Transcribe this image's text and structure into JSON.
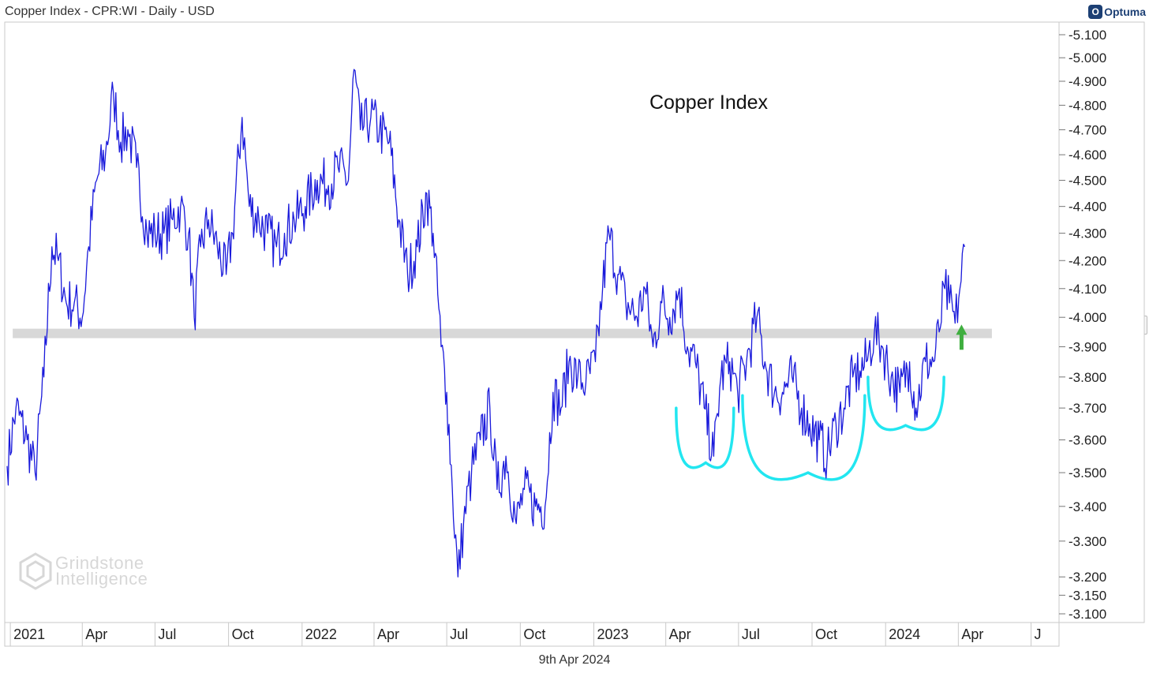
{
  "header": {
    "title": "Copper Index - CPR:WI - Daily - USD"
  },
  "brand": {
    "logo_text": "Optuma",
    "logo_icon": "optuma-logo-icon"
  },
  "footer": {
    "date": "9th Apr 2024"
  },
  "watermark": {
    "line1": "Grindstone",
    "line2": "Intelligence"
  },
  "colors": {
    "series": "#1a1adb",
    "support": "#d8d8d8",
    "pattern": "#22e6f0",
    "arrow": "#3fae3f"
  },
  "chart_data": {
    "type": "line",
    "title": "Copper Index",
    "scale": "log",
    "grid": false,
    "ylim": [
      3.1,
      5.1
    ],
    "y_ticks": [
      "5.100",
      "5.000",
      "4.900",
      "4.800",
      "4.700",
      "4.600",
      "4.500",
      "4.400",
      "4.300",
      "4.200",
      "4.100",
      "4.000",
      "3.900",
      "3.800",
      "3.700",
      "3.600",
      "3.500",
      "3.400",
      "3.300",
      "3.200",
      "3.150",
      "3.100"
    ],
    "x_ticks": [
      "2021",
      "Apr",
      "Jul",
      "Oct",
      "2022",
      "Apr",
      "Jul",
      "Oct",
      "2023",
      "Apr",
      "Jul",
      "Oct",
      "2024",
      "Apr",
      "J"
    ],
    "x_tick_dates": [
      "2021-01-01",
      "2021-04-01",
      "2021-07-01",
      "2021-10-01",
      "2022-01-01",
      "2022-04-01",
      "2022-07-01",
      "2022-10-01",
      "2023-01-01",
      "2023-04-01",
      "2023-07-01",
      "2023-10-01",
      "2024-01-01",
      "2024-04-01",
      "2024-07-01"
    ],
    "xlim": [
      "2020-12-25",
      "2024-08-05"
    ],
    "series": [
      {
        "points": [
          [
            "2020-12-28",
            3.52
          ],
          [
            "2021-01-08",
            3.7
          ],
          [
            "2021-01-22",
            3.6
          ],
          [
            "2021-02-01",
            3.5
          ],
          [
            "2021-02-12",
            3.8
          ],
          [
            "2021-02-22",
            4.25
          ],
          [
            "2021-03-02",
            4.2
          ],
          [
            "2021-03-12",
            4.05
          ],
          [
            "2021-03-22",
            4.05
          ],
          [
            "2021-04-01",
            4.0
          ],
          [
            "2021-04-09",
            4.25
          ],
          [
            "2021-04-19",
            4.5
          ],
          [
            "2021-04-30",
            4.6
          ],
          [
            "2021-05-10",
            4.85
          ],
          [
            "2021-05-19",
            4.65
          ],
          [
            "2021-05-28",
            4.7
          ],
          [
            "2021-06-08",
            4.55
          ],
          [
            "2021-06-21",
            4.3
          ],
          [
            "2021-07-01",
            4.3
          ],
          [
            "2021-07-12",
            4.3
          ],
          [
            "2021-07-23",
            4.35
          ],
          [
            "2021-08-02",
            4.4
          ],
          [
            "2021-08-12",
            4.3
          ],
          [
            "2021-08-19",
            4.0
          ],
          [
            "2021-08-27",
            4.25
          ],
          [
            "2021-09-06",
            4.35
          ],
          [
            "2021-09-17",
            4.25
          ],
          [
            "2021-09-28",
            4.15
          ],
          [
            "2021-10-06",
            4.3
          ],
          [
            "2021-10-18",
            4.75
          ],
          [
            "2021-10-27",
            4.4
          ],
          [
            "2021-11-08",
            4.35
          ],
          [
            "2021-11-19",
            4.3
          ],
          [
            "2021-11-30",
            4.25
          ],
          [
            "2021-12-10",
            4.3
          ],
          [
            "2021-12-22",
            4.35
          ],
          [
            "2022-01-05",
            4.4
          ],
          [
            "2022-01-20",
            4.5
          ],
          [
            "2022-02-03",
            4.48
          ],
          [
            "2022-02-15",
            4.55
          ],
          [
            "2022-02-28",
            4.5
          ],
          [
            "2022-03-07",
            4.95
          ],
          [
            "2022-03-15",
            4.7
          ],
          [
            "2022-03-28",
            4.75
          ],
          [
            "2022-04-08",
            4.7
          ],
          [
            "2022-04-20",
            4.65
          ],
          [
            "2022-05-02",
            4.35
          ],
          [
            "2022-05-13",
            4.15
          ],
          [
            "2022-05-25",
            4.25
          ],
          [
            "2022-06-06",
            4.45
          ],
          [
            "2022-06-14",
            4.3
          ],
          [
            "2022-06-24",
            3.9
          ],
          [
            "2022-07-01",
            3.75
          ],
          [
            "2022-07-08",
            3.45
          ],
          [
            "2022-07-15",
            3.2
          ],
          [
            "2022-07-22",
            3.35
          ],
          [
            "2022-08-01",
            3.5
          ],
          [
            "2022-08-12",
            3.6
          ],
          [
            "2022-08-24",
            3.7
          ],
          [
            "2022-09-02",
            3.45
          ],
          [
            "2022-09-13",
            3.55
          ],
          [
            "2022-09-26",
            3.35
          ],
          [
            "2022-10-06",
            3.45
          ],
          [
            "2022-10-20",
            3.4
          ],
          [
            "2022-11-01",
            3.4
          ],
          [
            "2022-11-11",
            3.75
          ],
          [
            "2022-11-21",
            3.7
          ],
          [
            "2022-12-01",
            3.85
          ],
          [
            "2022-12-12",
            3.8
          ],
          [
            "2022-12-22",
            3.78
          ],
          [
            "2023-01-03",
            3.85
          ],
          [
            "2023-01-12",
            4.1
          ],
          [
            "2023-01-20",
            4.3
          ],
          [
            "2023-01-31",
            4.15
          ],
          [
            "2023-02-10",
            4.05
          ],
          [
            "2023-02-24",
            4.0
          ],
          [
            "2023-03-06",
            4.1
          ],
          [
            "2023-03-16",
            3.9
          ],
          [
            "2023-03-27",
            4.05
          ],
          [
            "2023-04-06",
            4.0
          ],
          [
            "2023-04-18",
            4.1
          ],
          [
            "2023-04-28",
            3.9
          ],
          [
            "2023-05-08",
            3.85
          ],
          [
            "2023-05-19",
            3.7
          ],
          [
            "2023-05-31",
            3.55
          ],
          [
            "2023-06-09",
            3.8
          ],
          [
            "2023-06-20",
            3.85
          ],
          [
            "2023-06-30",
            3.75
          ],
          [
            "2023-07-11",
            3.85
          ],
          [
            "2023-07-24",
            4.0
          ],
          [
            "2023-08-03",
            3.85
          ],
          [
            "2023-08-15",
            3.75
          ],
          [
            "2023-08-25",
            3.75
          ],
          [
            "2023-09-06",
            3.8
          ],
          [
            "2023-09-18",
            3.7
          ],
          [
            "2023-09-28",
            3.65
          ],
          [
            "2023-10-10",
            3.6
          ],
          [
            "2023-10-20",
            3.55
          ],
          [
            "2023-10-31",
            3.65
          ],
          [
            "2023-11-10",
            3.7
          ],
          [
            "2023-11-21",
            3.8
          ],
          [
            "2023-11-30",
            3.82
          ],
          [
            "2023-12-08",
            3.85
          ],
          [
            "2023-12-18",
            3.95
          ],
          [
            "2023-12-28",
            3.9
          ],
          [
            "2024-01-08",
            3.8
          ],
          [
            "2024-01-19",
            3.75
          ],
          [
            "2024-01-31",
            3.85
          ],
          [
            "2024-02-08",
            3.7
          ],
          [
            "2024-02-20",
            3.85
          ],
          [
            "2024-03-01",
            3.85
          ],
          [
            "2024-03-08",
            3.95
          ],
          [
            "2024-03-15",
            4.1
          ],
          [
            "2024-03-21",
            4.05
          ],
          [
            "2024-03-28",
            3.98
          ],
          [
            "2024-04-03",
            4.1
          ],
          [
            "2024-04-09",
            4.25
          ]
        ]
      }
    ],
    "annotations": {
      "support_level": 3.945,
      "support_range": [
        "2021-01-04",
        "2024-05-13"
      ],
      "arcs": [
        {
          "from": [
            "2023-04-14",
            3.7
          ],
          "bottom": [
            "2023-05-21",
            3.53
          ],
          "to": [
            "2023-06-25",
            3.7
          ]
        },
        {
          "from": [
            "2023-07-06",
            3.74
          ],
          "bottom": [
            "2023-09-26",
            3.5
          ],
          "to": [
            "2023-12-06",
            3.74
          ]
        },
        {
          "from": [
            "2023-12-10",
            3.8
          ],
          "bottom": [
            "2024-01-26",
            3.645
          ],
          "to": [
            "2024-03-14",
            3.8
          ]
        }
      ],
      "arrow": {
        "date": "2024-04-05",
        "from": 3.89,
        "to": 3.975
      }
    }
  }
}
